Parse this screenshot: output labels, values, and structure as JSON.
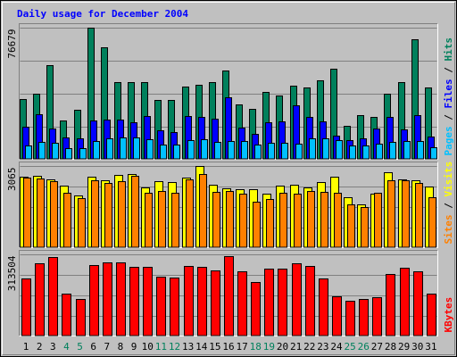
{
  "colors": {
    "background": "#c0c0c0",
    "title": "#0000ff",
    "hits": "#00805c",
    "files": "#0000ff",
    "pages": "#00c0ff",
    "visits": "#ffff00",
    "sites": "#ff8000",
    "kbytes": "#ff0000",
    "weekend_day": "#00805c",
    "weekday": "#000000"
  },
  "chart_data": {
    "type": "bar",
    "title": "Daily usage for December 2004",
    "days": [
      "1",
      "2",
      "3",
      "4",
      "5",
      "6",
      "7",
      "8",
      "9",
      "10",
      "11",
      "12",
      "13",
      "14",
      "15",
      "16",
      "17",
      "18",
      "19",
      "20",
      "21",
      "22",
      "23",
      "24",
      "25",
      "26",
      "27",
      "28",
      "29",
      "30",
      "31"
    ],
    "weekend_days": [
      "4",
      "5",
      "11",
      "12",
      "18",
      "19",
      "25",
      "26"
    ],
    "grid": true,
    "panels": [
      {
        "id": "hits-files-pages",
        "max_label": "76679",
        "ylim": [
          0,
          76679
        ],
        "legend": [
          "Pages",
          "Files",
          "Hits"
        ],
        "series": [
          {
            "name": "Hits",
            "values": [
              34800,
              38200,
              54600,
              22600,
              28800,
              76679,
              65200,
              44700,
              44800,
              44900,
              34500,
              34300,
              42200,
              43100,
              44800,
              51300,
              31900,
              29200,
              38900,
              36800,
              42600,
              41600,
              45700,
              52400,
              19500,
              25900,
              24600,
              38100,
              45000,
              69500,
              41600
            ]
          },
          {
            "name": "Files",
            "values": [
              18800,
              26100,
              17800,
              12500,
              12400,
              22700,
              23300,
              22800,
              21500,
              25300,
              16800,
              15800,
              25200,
              24500,
              23700,
              36200,
              18300,
              14900,
              21500,
              21800,
              31400,
              24800,
              22100,
              13500,
              11000,
              12000,
              18000,
              24500,
              17100,
              25600,
              13400
            ]
          },
          {
            "name": "Pages",
            "values": [
              8100,
              10000,
              9500,
              6600,
              6500,
              10400,
              12300,
              12500,
              12700,
              11600,
              8600,
              8500,
              10900,
              11700,
              9900,
              10700,
              10500,
              8500,
              9600,
              9600,
              9200,
              12100,
              12300,
              11100,
              8000,
              7800,
              8900,
              9900,
              10400,
              10700,
              7200
            ]
          }
        ]
      },
      {
        "id": "visits-sites",
        "max_label": "3065",
        "ylim": [
          0,
          3065
        ],
        "legend": [
          "Sites",
          "Visits"
        ],
        "series": [
          {
            "name": "Visits",
            "values": [
              2640,
              2690,
              2540,
              2330,
              1940,
              2660,
              2530,
              2730,
              2760,
              2260,
              2470,
              2440,
              2630,
              3065,
              2360,
              2220,
              2180,
              2180,
              2030,
              2330,
              2360,
              2260,
              2450,
              2640,
              1880,
              1630,
              2010,
              2800,
              2560,
              2530,
              2270
            ]
          },
          {
            "name": "Sites",
            "values": [
              2620,
              2580,
              2490,
              2050,
              1840,
              2520,
              2420,
              2480,
              2690,
              2050,
              2120,
              2050,
              2550,
              2750,
              2080,
              2120,
              2020,
              1720,
              1830,
              2050,
              2030,
              2120,
              2080,
              2050,
              1630,
              1510,
              2050,
              2510,
              2500,
              2400,
              1890
            ]
          }
        ]
      },
      {
        "id": "kbytes",
        "max_label": "313504",
        "ylim": [
          0,
          313504
        ],
        "legend": [
          "KBytes"
        ],
        "series": [
          {
            "name": "KBytes",
            "values": [
              221000,
              276500,
              303000,
              162500,
              141500,
              270000,
              280500,
              281000,
              265000,
              265000,
              225500,
              224000,
              266000,
              263000,
              252000,
              304000,
              247500,
              206000,
              256000,
              258500,
              277000,
              268000,
              219000,
              152000,
              136000,
              141500,
              149000,
              238000,
              261000,
              248000,
              163000
            ]
          }
        ]
      }
    ]
  }
}
